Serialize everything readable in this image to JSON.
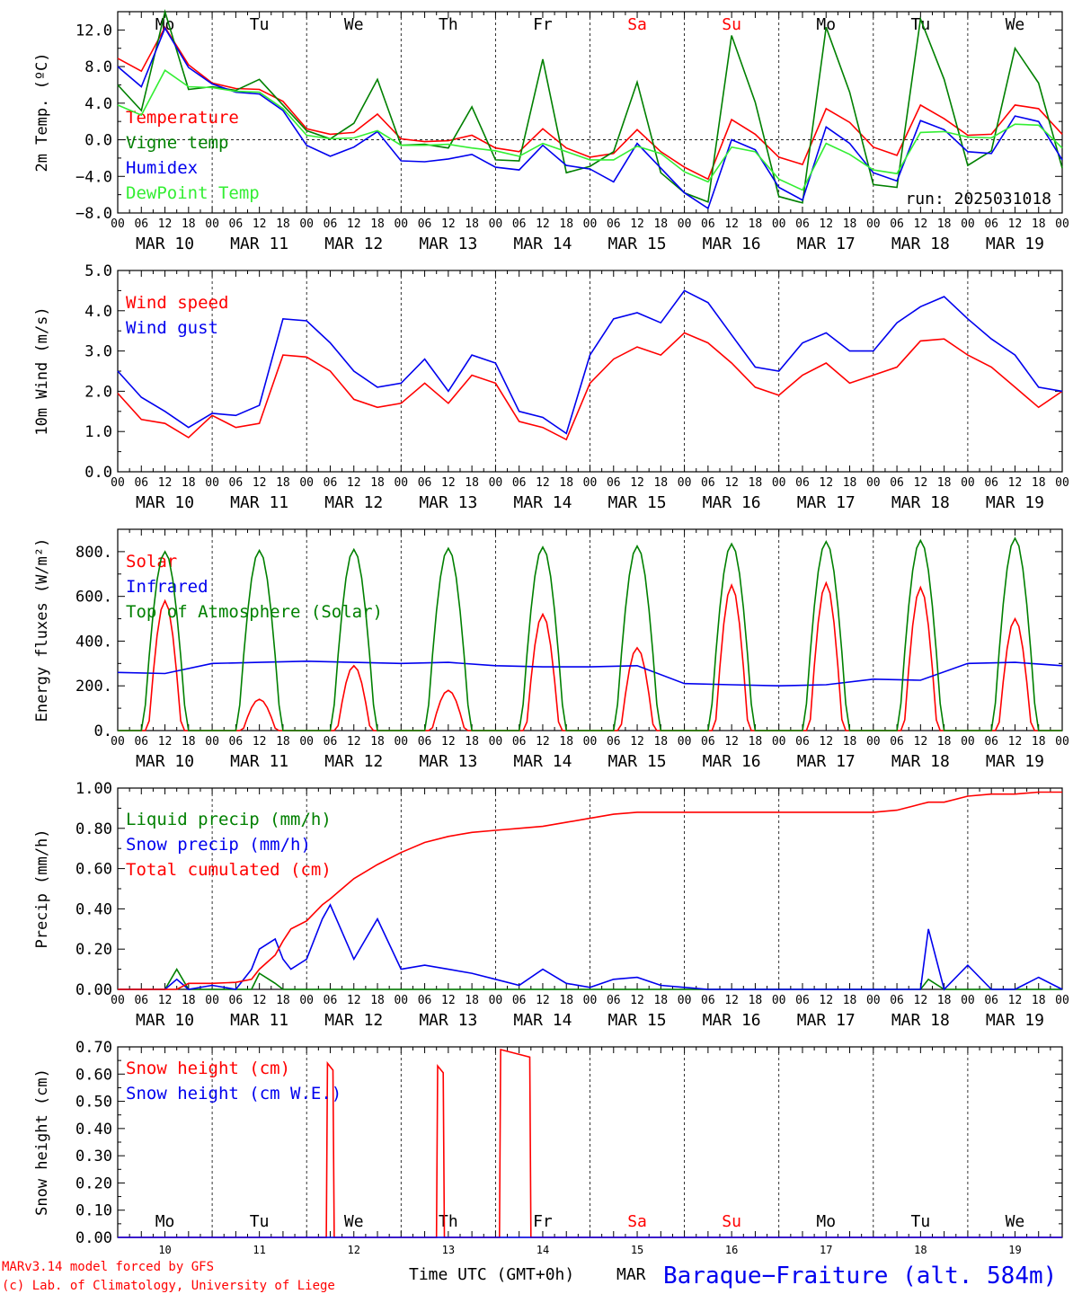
{
  "days": {
    "names": [
      "Mo",
      "Tu",
      "We",
      "Th",
      "Fr",
      "Sa",
      "Su",
      "Mo",
      "Tu",
      "We"
    ],
    "weekend_flags": [
      false,
      false,
      false,
      false,
      false,
      true,
      true,
      false,
      false,
      false
    ],
    "dates": [
      "MAR 10",
      "MAR 11",
      "MAR 12",
      "MAR 13",
      "MAR 14",
      "MAR 15",
      "MAR 16",
      "MAR 17",
      "MAR 18",
      "MAR 19"
    ],
    "day_numbers": [
      "10",
      "11",
      "12",
      "13",
      "14",
      "15",
      "16",
      "17",
      "18",
      "19"
    ],
    "hour_ticks": [
      "00",
      "06",
      "12",
      "18"
    ]
  },
  "colors": {
    "red": "#ff0000",
    "green": "#008000",
    "blue": "#0000ee",
    "lightgreen": "#33ee33",
    "black": "#000000"
  },
  "footer": {
    "model": "MARv3.14 model forced by GFS",
    "copyright": "(c) Lab. of Climatology, University of Liege",
    "xlabel": "Time UTC (GMT+0h)",
    "month": "MAR",
    "station": "Baraque−Fraiture (alt. 584m)"
  },
  "chart_data": [
    {
      "type": "line",
      "ylabel": "2m Temp. (ºC)",
      "run_label": "run: 2025031018",
      "ylim": [
        -8,
        14
      ],
      "yticks": [
        "-8.0",
        "-4.0",
        "0.0",
        "4.0",
        "8.0",
        "12.0"
      ],
      "zero_line": true,
      "x": [
        0,
        6,
        12,
        18,
        24,
        30,
        36,
        42,
        48,
        54,
        60,
        66,
        72,
        78,
        84,
        90,
        96,
        102,
        108,
        114,
        120,
        126,
        132,
        138,
        144,
        150,
        156,
        162,
        168,
        174,
        180,
        186,
        192,
        198,
        204,
        210,
        216,
        222,
        228,
        234,
        240
      ],
      "series": [
        {
          "name": "Temperature",
          "color": "red",
          "values": [
            8.9,
            7.5,
            12.3,
            8.2,
            6.2,
            5.6,
            5.5,
            4.2,
            1.2,
            0.6,
            0.8,
            2.8,
            0.1,
            -0.2,
            -0.1,
            0.5,
            -0.9,
            -1.3,
            1.2,
            -0.9,
            -1.9,
            -1.5,
            1.1,
            -1.3,
            -3.0,
            -4.3,
            2.2,
            0.6,
            -1.9,
            -2.7,
            3.4,
            1.9,
            -0.8,
            -1.7,
            3.8,
            2.3,
            0.5,
            0.6,
            3.8,
            3.4,
            0.6
          ]
        },
        {
          "name": "Vigne temp",
          "color": "green",
          "values": [
            6.0,
            3.2,
            14.0,
            5.5,
            5.8,
            5.4,
            6.6,
            3.8,
            1.0,
            0.1,
            1.8,
            6.6,
            -0.6,
            -0.5,
            -0.9,
            3.6,
            -2.2,
            -2.3,
            8.8,
            -3.6,
            -2.9,
            -1.3,
            6.3,
            -3.6,
            -5.8,
            -6.8,
            11.4,
            4.1,
            -6.2,
            -6.9,
            12.3,
            5.2,
            -4.9,
            -5.2,
            13.2,
            6.6,
            -2.8,
            -1.2,
            10.0,
            6.2,
            -3.1
          ]
        },
        {
          "name": "Humidex",
          "color": "blue",
          "values": [
            8.0,
            5.8,
            12.2,
            7.9,
            6.1,
            5.2,
            5.0,
            3.2,
            -0.6,
            -1.8,
            -0.8,
            0.9,
            -2.3,
            -2.4,
            -2.1,
            -1.6,
            -3.0,
            -3.3,
            -0.6,
            -2.8,
            -3.2,
            -4.6,
            -0.4,
            -3.1,
            -5.8,
            -7.5,
            0.0,
            -1.1,
            -5.2,
            -6.6,
            1.4,
            -0.4,
            -3.6,
            -4.5,
            2.1,
            1.1,
            -1.3,
            -1.5,
            2.6,
            2.0,
            -2.2
          ]
        },
        {
          "name": "DewPoint Temp",
          "color": "lightgreen",
          "values": [
            3.8,
            2.7,
            7.6,
            5.8,
            5.7,
            5.3,
            5.2,
            3.4,
            0.5,
            0.1,
            0.2,
            1.0,
            -0.6,
            -0.6,
            -0.5,
            -0.9,
            -1.2,
            -1.8,
            -0.4,
            -1.3,
            -2.2,
            -2.2,
            -0.7,
            -1.5,
            -3.5,
            -4.6,
            -0.8,
            -1.3,
            -4.3,
            -5.5,
            -0.4,
            -1.6,
            -3.3,
            -3.7,
            0.8,
            0.9,
            0.3,
            0.2,
            1.7,
            1.6,
            -0.9
          ]
        }
      ]
    },
    {
      "type": "line",
      "ylabel": "10m Wind (m/s)",
      "ylim": [
        0,
        5
      ],
      "yticks": [
        "0.0",
        "1.0",
        "2.0",
        "3.0",
        "4.0",
        "5.0"
      ],
      "x": [
        0,
        6,
        12,
        18,
        24,
        30,
        36,
        42,
        48,
        54,
        60,
        66,
        72,
        78,
        84,
        90,
        96,
        102,
        108,
        114,
        120,
        126,
        132,
        138,
        144,
        150,
        156,
        162,
        168,
        174,
        180,
        186,
        192,
        198,
        204,
        210,
        216,
        222,
        228,
        234,
        240
      ],
      "series": [
        {
          "name": "Wind speed",
          "color": "red",
          "values": [
            1.95,
            1.3,
            1.2,
            0.85,
            1.4,
            1.1,
            1.2,
            2.9,
            2.85,
            2.5,
            1.8,
            1.6,
            1.7,
            2.2,
            1.7,
            2.4,
            2.2,
            1.25,
            1.1,
            0.8,
            2.2,
            2.8,
            3.1,
            2.9,
            3.45,
            3.2,
            2.7,
            2.1,
            1.9,
            2.4,
            2.7,
            2.2,
            2.4,
            2.6,
            3.25,
            3.3,
            2.9,
            2.6,
            2.1,
            1.6,
            2.0
          ]
        },
        {
          "name": "Wind gust",
          "color": "blue",
          "values": [
            2.5,
            1.85,
            1.5,
            1.1,
            1.45,
            1.4,
            1.65,
            3.8,
            3.75,
            3.2,
            2.5,
            2.1,
            2.2,
            2.8,
            2.0,
            2.9,
            2.7,
            1.5,
            1.35,
            0.95,
            2.9,
            3.8,
            3.95,
            3.7,
            4.5,
            4.2,
            3.4,
            2.6,
            2.5,
            3.2,
            3.45,
            3.0,
            3.0,
            3.7,
            4.1,
            4.35,
            3.8,
            3.3,
            2.9,
            2.1,
            2.0
          ]
        }
      ]
    },
    {
      "type": "line",
      "ylabel": "Energy fluxes (W/m²)",
      "ylim": [
        0,
        900
      ],
      "yticks": [
        "0.",
        "200.",
        "400.",
        "600.",
        "800."
      ],
      "peaks_day": [
        0,
        1,
        2,
        3,
        4,
        5,
        6,
        7,
        8,
        9
      ],
      "series": [
        {
          "name": "Solar",
          "color": "red",
          "peak_values": [
            580,
            140,
            290,
            180,
            520,
            370,
            650,
            660,
            640,
            500
          ]
        },
        {
          "name": "Infrared",
          "color": "blue",
          "day_values": [
            260,
            300,
            310,
            300,
            290,
            285,
            210,
            200,
            230,
            300,
            290
          ]
        },
        {
          "name": "Top of Atmosphere (Solar)",
          "color": "green",
          "peak_values": [
            800,
            805,
            810,
            815,
            820,
            825,
            835,
            845,
            850,
            860
          ]
        }
      ]
    },
    {
      "type": "line",
      "ylabel": "Precip (mm/h)",
      "ylim": [
        0,
        1
      ],
      "yticks": [
        "0.00",
        "0.20",
        "0.40",
        "0.60",
        "0.80",
        "1.00"
      ],
      "x": [
        0,
        6,
        12,
        15,
        18,
        24,
        30,
        34,
        36,
        40,
        42,
        44,
        48,
        52,
        54,
        60,
        66,
        72,
        78,
        84,
        90,
        96,
        102,
        108,
        114,
        120,
        126,
        132,
        138,
        144,
        150,
        156,
        162,
        168,
        174,
        180,
        186,
        192,
        198,
        204,
        206,
        210,
        216,
        222,
        228,
        234,
        240
      ],
      "series": [
        {
          "name": "Liquid precip (mm/h)",
          "color": "green",
          "values": [
            0,
            0,
            0,
            0.1,
            0,
            0,
            0,
            0,
            0.08,
            0.03,
            0,
            0,
            0,
            0,
            0,
            0,
            0,
            0,
            0,
            0,
            0,
            0,
            0,
            0,
            0,
            0,
            0,
            0,
            0,
            0,
            0,
            0,
            0,
            0,
            0,
            0,
            0,
            0,
            0,
            0,
            0.05,
            0,
            0,
            0,
            0,
            0,
            0
          ]
        },
        {
          "name": "Snow precip (mm/h)",
          "color": "blue",
          "values": [
            0,
            0,
            0,
            0.05,
            0,
            0.02,
            0,
            0.1,
            0.2,
            0.25,
            0.15,
            0.1,
            0.15,
            0.35,
            0.42,
            0.15,
            0.35,
            0.1,
            0.12,
            0.1,
            0.08,
            0.05,
            0.02,
            0.1,
            0.03,
            0.01,
            0.05,
            0.06,
            0.02,
            0.01,
            0,
            0,
            0,
            0,
            0,
            0,
            0,
            0,
            0,
            0,
            0.3,
            0,
            0.12,
            0,
            0,
            0.06,
            0
          ]
        },
        {
          "name": "Total cumulated (cm)",
          "color": "red",
          "values": [
            0,
            0,
            0,
            0,
            0.03,
            0.03,
            0.035,
            0.05,
            0.1,
            0.17,
            0.24,
            0.3,
            0.34,
            0.42,
            0.45,
            0.55,
            0.62,
            0.68,
            0.73,
            0.76,
            0.78,
            0.79,
            0.8,
            0.81,
            0.83,
            0.85,
            0.87,
            0.88,
            0.88,
            0.88,
            0.88,
            0.88,
            0.88,
            0.88,
            0.88,
            0.88,
            0.88,
            0.88,
            0.89,
            0.92,
            0.93,
            0.93,
            0.96,
            0.97,
            0.97,
            0.98,
            0.98
          ]
        }
      ]
    },
    {
      "type": "line",
      "ylabel": "Snow height (cm)",
      "ylim": [
        0,
        0.7
      ],
      "yticks": [
        "0.00",
        "0.10",
        "0.20",
        "0.30",
        "0.40",
        "0.50",
        "0.60",
        "0.70"
      ],
      "series": [
        {
          "name": "Snow height (cm)",
          "color": "red",
          "pulses": [
            {
              "x0": 53,
              "x1": 55,
              "v": 0.64
            },
            {
              "x0": 81,
              "x1": 83,
              "v": 0.63
            },
            {
              "x0": 97,
              "x1": 105,
              "v": 0.69
            }
          ]
        },
        {
          "name": "Snow height (cm W.E.)",
          "color": "blue",
          "pulses": []
        }
      ]
    }
  ]
}
